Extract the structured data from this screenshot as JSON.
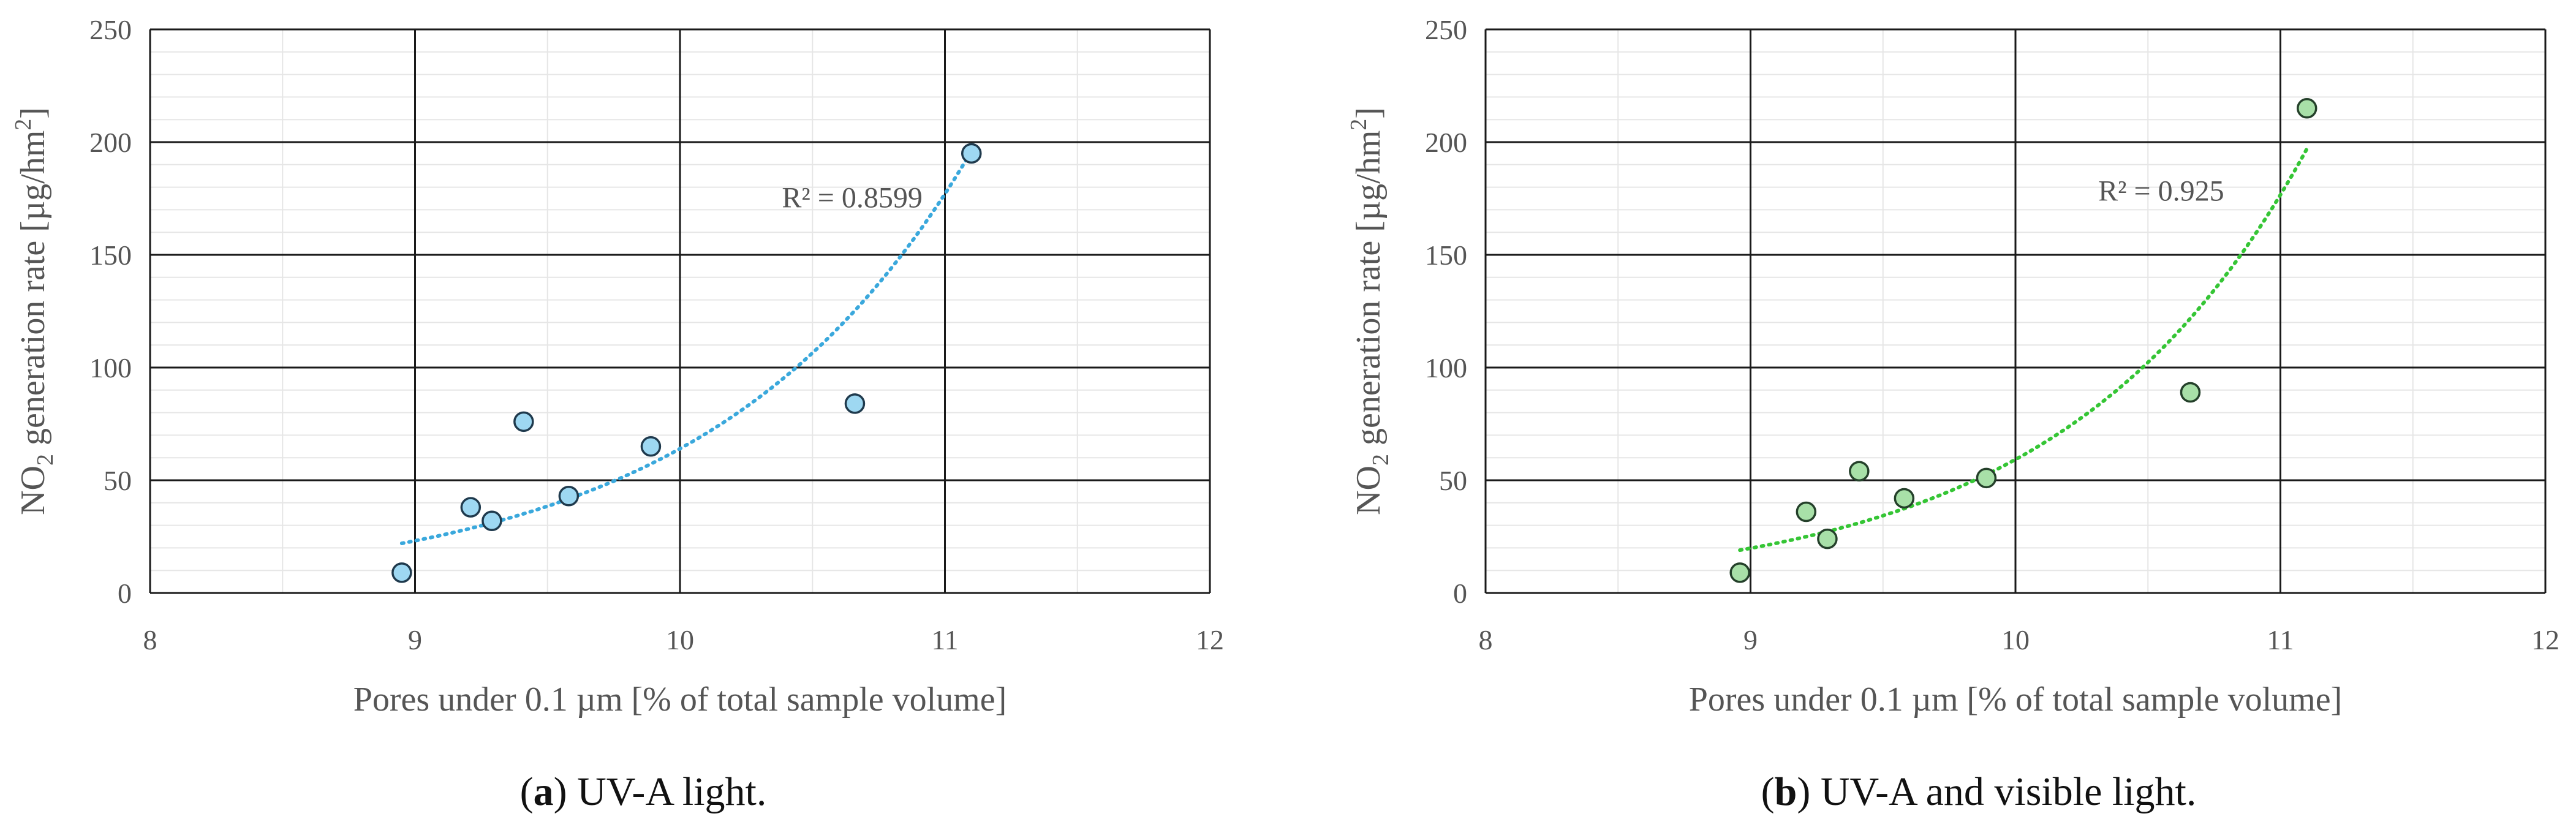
{
  "chart_data": [
    {
      "type": "scatter",
      "panel_label": "a",
      "caption_text": " UV-A light.",
      "xlabel": "Pores under 0.1 µm [% of total sample volume]",
      "ylabel_parts": [
        "NO",
        "2",
        " generation rate [µg/hm",
        "2",
        "]"
      ],
      "xlim": [
        8,
        12
      ],
      "ylim": [
        0,
        250
      ],
      "x_ticks": [
        8,
        9,
        10,
        11,
        12
      ],
      "y_ticks": [
        0,
        50,
        100,
        150,
        200,
        250
      ],
      "grid": true,
      "points": [
        {
          "x": 8.95,
          "y": 9
        },
        {
          "x": 9.21,
          "y": 38
        },
        {
          "x": 9.29,
          "y": 32
        },
        {
          "x": 9.41,
          "y": 76
        },
        {
          "x": 9.58,
          "y": 43
        },
        {
          "x": 9.89,
          "y": 65
        },
        {
          "x": 10.66,
          "y": 84
        },
        {
          "x": 11.1,
          "y": 195
        }
      ],
      "trendline": {
        "type": "exponential",
        "x_range": [
          8.95,
          11.1
        ],
        "y_start": 22,
        "y_end": 196
      },
      "r2_label": "R² = 0.8599",
      "r2_anchor": {
        "x": 10.65,
        "y": 171
      },
      "colors": {
        "marker_fill": "#9ed8f2",
        "marker_stroke": "#1f3a4d",
        "trend": "#3aa8dc"
      }
    },
    {
      "type": "scatter",
      "panel_label": "b",
      "caption_text": " UV-A and visible light.",
      "xlabel": "Pores under 0.1 µm [% of total sample volume]",
      "ylabel_parts": [
        "NO",
        "2",
        " generation rate [µg/hm",
        "2",
        "]"
      ],
      "xlim": [
        8,
        12
      ],
      "ylim": [
        0,
        250
      ],
      "x_ticks": [
        8,
        9,
        10,
        11,
        12
      ],
      "y_ticks": [
        0,
        50,
        100,
        150,
        200,
        250
      ],
      "grid": true,
      "points": [
        {
          "x": 8.96,
          "y": 9
        },
        {
          "x": 9.21,
          "y": 36
        },
        {
          "x": 9.29,
          "y": 24
        },
        {
          "x": 9.41,
          "y": 54
        },
        {
          "x": 9.58,
          "y": 42
        },
        {
          "x": 9.89,
          "y": 51
        },
        {
          "x": 10.66,
          "y": 89
        },
        {
          "x": 11.1,
          "y": 215
        }
      ],
      "trendline": {
        "type": "exponential",
        "x_range": [
          8.96,
          11.1
        ],
        "y_start": 19,
        "y_end": 197
      },
      "r2_label": "R² = 0.925",
      "r2_anchor": {
        "x": 10.55,
        "y": 174
      },
      "colors": {
        "marker_fill": "#a8e0a8",
        "marker_stroke": "#24402a",
        "trend": "#35c535"
      }
    }
  ]
}
